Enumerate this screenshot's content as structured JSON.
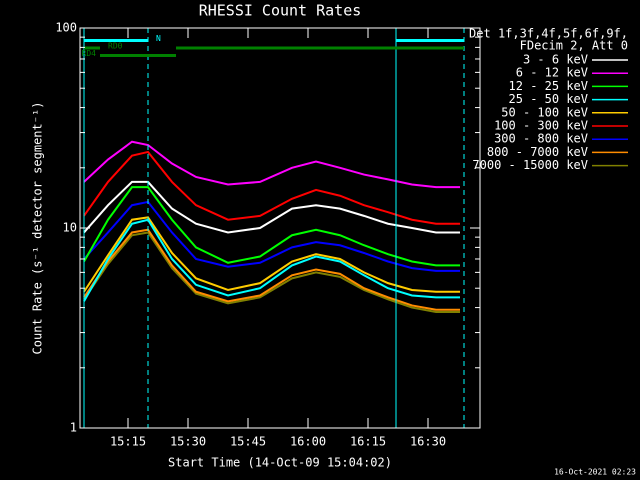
{
  "chart_data": {
    "type": "line",
    "title": "RHESSI Count Rates",
    "x_label": "Start Time (14-Oct-09 15:04:02)",
    "y_label": "Count Rate (s⁻¹ detector segment⁻¹)",
    "legend_header": [
      "Det 1f,3f,4f,5f,6f,9f,",
      "FDecim 2, Att 0"
    ],
    "footer": "16-Oct-2021 02:23",
    "log_y": true,
    "xlim": [
      "15:03",
      "16:43"
    ],
    "xticks": [
      "15:15",
      "15:30",
      "15:45",
      "16:00",
      "16:15",
      "16:30"
    ],
    "ylim": [
      1,
      100
    ],
    "yticks": [
      1,
      10,
      100
    ],
    "yminorticks": [
      2,
      3,
      4,
      5,
      6,
      7,
      8,
      9,
      20,
      30,
      40,
      50,
      60,
      70,
      80,
      90
    ],
    "x": [
      "15:04",
      "15:10",
      "15:16",
      "15:20",
      "15:26",
      "15:32",
      "15:40",
      "15:48",
      "15:56",
      "16:02",
      "16:08",
      "16:14",
      "16:20",
      "16:26",
      "16:32",
      "16:38"
    ],
    "series": [
      {
        "name": "3 - 6 keV",
        "color": "#ffffff",
        "values": [
          9.5,
          13,
          17,
          17,
          12.5,
          10.5,
          9.5,
          10,
          12.5,
          13,
          12.5,
          11.5,
          10.5,
          10,
          9.5,
          9.5
        ]
      },
      {
        "name": "6 - 12 keV",
        "color": "#ff00ff",
        "values": [
          17,
          22,
          27,
          26,
          21,
          18,
          16.5,
          17,
          20,
          21.5,
          20,
          18.5,
          17.5,
          16.5,
          16,
          16
        ]
      },
      {
        "name": "12 - 25 keV",
        "color": "#00ff00",
        "values": [
          6.8,
          11,
          16,
          16,
          11,
          8,
          6.7,
          7.2,
          9.2,
          9.8,
          9.2,
          8.2,
          7.4,
          6.8,
          6.5,
          6.5
        ]
      },
      {
        "name": "25 - 50 keV",
        "color": "#00ffff",
        "values": [
          4.3,
          7,
          10.5,
          11,
          7,
          5.2,
          4.6,
          5,
          6.5,
          7.2,
          6.8,
          5.8,
          5,
          4.6,
          4.5,
          4.5
        ]
      },
      {
        "name": "50 - 100 keV",
        "color": "#ffcc00",
        "values": [
          4.8,
          7.3,
          11,
          11.3,
          7.5,
          5.6,
          4.9,
          5.3,
          6.8,
          7.4,
          7,
          6,
          5.3,
          4.9,
          4.8,
          4.8
        ]
      },
      {
        "name": "100 - 300 keV",
        "color": "#ff0000",
        "values": [
          11.5,
          17,
          23,
          24,
          17,
          13,
          11,
          11.5,
          14,
          15.5,
          14.5,
          13,
          12,
          11,
          10.5,
          10.5
        ]
      },
      {
        "name": "300 - 800 keV",
        "color": "#0000ff",
        "values": [
          7,
          9.5,
          13,
          13.5,
          9.5,
          7,
          6.4,
          6.7,
          8,
          8.5,
          8.2,
          7.5,
          6.8,
          6.3,
          6.1,
          6.1
        ]
      },
      {
        "name": "800 - 7000 keV",
        "color": "#ff8c00",
        "values": [
          4.5,
          6.8,
          9.5,
          9.8,
          6.5,
          4.8,
          4.3,
          4.6,
          5.8,
          6.2,
          5.9,
          5,
          4.5,
          4.1,
          3.9,
          3.9
        ]
      },
      {
        "name": "7000 - 15000 keV",
        "color": "#808000",
        "values": [
          4.4,
          6.6,
          9.2,
          9.5,
          6.3,
          4.7,
          4.2,
          4.5,
          5.6,
          6,
          5.7,
          4.9,
          4.4,
          4,
          3.8,
          3.8
        ]
      }
    ],
    "draw_order": [
      8,
      7,
      4,
      3,
      6,
      2,
      0,
      5,
      1
    ],
    "vlines": [
      {
        "x": "15:04",
        "color": "#00ffff",
        "dashed": false
      },
      {
        "x": "15:20",
        "color": "#00ffff",
        "dashed": true
      },
      {
        "x": "16:22",
        "color": "#00ffff",
        "dashed": false
      },
      {
        "x": "16:39",
        "color": "#00ffff",
        "dashed": true
      }
    ],
    "state_bars": [
      {
        "row": 1,
        "color": "#00ffff",
        "segments": [
          [
            "15:04",
            "15:20"
          ],
          [
            "16:22",
            "16:39"
          ]
        ],
        "label": "N",
        "label_side": "after"
      },
      {
        "row": 2,
        "color": "#008000",
        "segments": [
          [
            "15:04",
            "15:08"
          ],
          [
            "15:27",
            "16:39"
          ]
        ],
        "label": "RD0",
        "label_side": "after"
      },
      {
        "row": 3,
        "color": "#008000",
        "segments": [
          [
            "15:08",
            "15:27"
          ]
        ],
        "label": "RD4",
        "label_side": "before"
      }
    ]
  }
}
